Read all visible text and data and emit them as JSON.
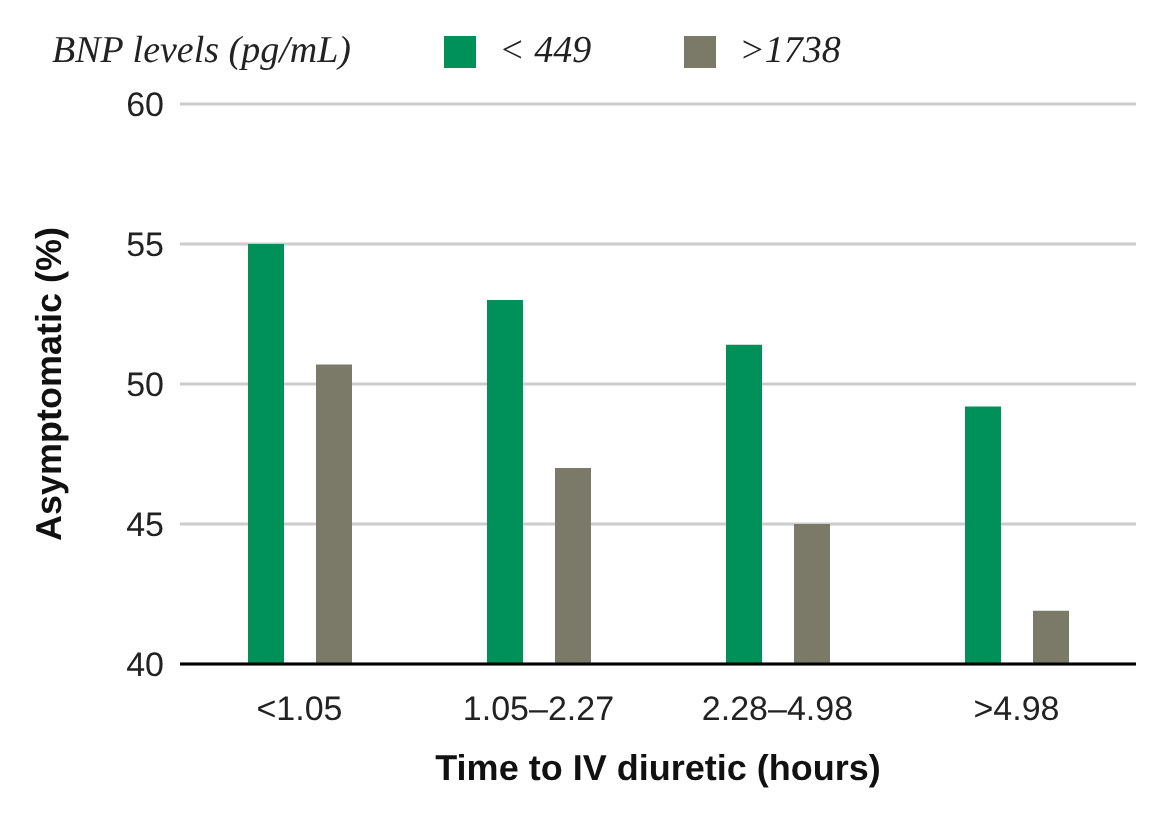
{
  "chart_data": {
    "type": "bar",
    "legend_title": "BNP levels (pg/mL)",
    "xlabel": "Time to IV diuretic (hours)",
    "ylabel": "Asymptomatic (%)",
    "categories": [
      "<1.05",
      "1.05–2.27",
      "2.28–4.98",
      ">4.98"
    ],
    "series": [
      {
        "name": "< 449",
        "color": "#009059",
        "values": [
          55.0,
          53.0,
          51.4,
          49.2
        ]
      },
      {
        "name": ">1738",
        "color": "#7b7a68",
        "values": [
          50.7,
          47.0,
          45.0,
          41.9
        ]
      }
    ],
    "ylim": [
      40,
      60
    ],
    "yticks": [
      40,
      45,
      50,
      55,
      60
    ],
    "grid": "y",
    "legend": "top left"
  }
}
